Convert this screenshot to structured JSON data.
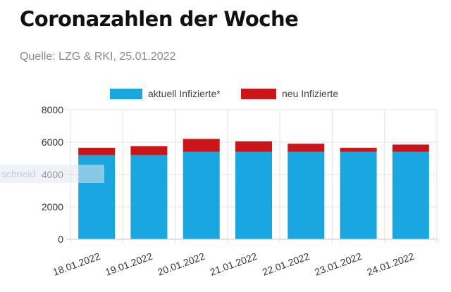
{
  "page": {
    "title": "Coronazahlen der Woche",
    "source": "Quelle: LZG & RKI, 25.01.2022",
    "overlay_text": "schneid"
  },
  "colors": {
    "series_active": "#1aa6de",
    "series_new": "#cc1518",
    "grid": "#e3e3e3",
    "axis": "#c9c9c9",
    "tick_text": "#333333"
  },
  "chart_data": {
    "type": "bar",
    "stacked": true,
    "categories": [
      "18.01.2022",
      "19.01.2022",
      "20.01.2022",
      "21.01.2022",
      "22.01.2022",
      "23.01.2022",
      "24.01.2022"
    ],
    "series": [
      {
        "name": "aktuell Infizierte*",
        "color": "#1aa6de",
        "values": [
          5200,
          5200,
          5400,
          5400,
          5400,
          5400,
          5400
        ]
      },
      {
        "name": "neu Infizierte",
        "color": "#cc1518",
        "values": [
          450,
          550,
          800,
          650,
          500,
          250,
          450
        ]
      }
    ],
    "ylim": [
      0,
      8000
    ],
    "yticks": [
      "0",
      "2000",
      "4000",
      "6000",
      "8000"
    ],
    "xlabel": "",
    "ylabel": "",
    "legend_position": "top",
    "grid": true
  }
}
